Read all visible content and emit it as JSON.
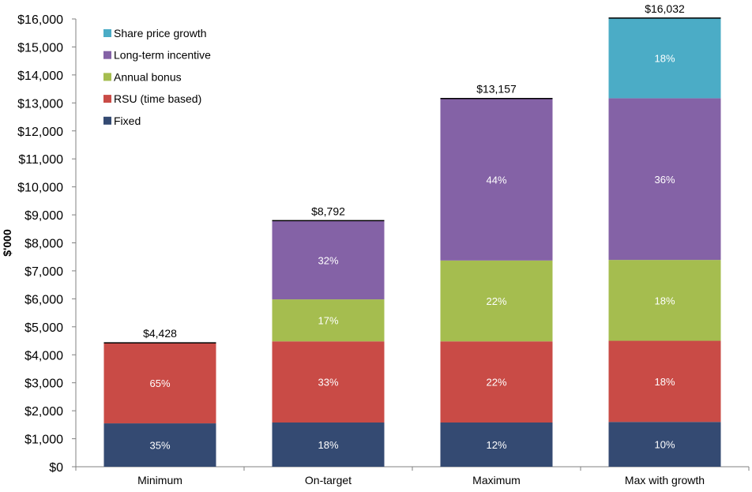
{
  "chart_data": {
    "type": "bar",
    "stacked": true,
    "ylabel": "$'000",
    "xlabel": "",
    "ylim": [
      0,
      16000
    ],
    "yticks": [
      0,
      1000,
      2000,
      3000,
      4000,
      5000,
      6000,
      7000,
      8000,
      9000,
      10000,
      11000,
      12000,
      13000,
      14000,
      15000,
      16000
    ],
    "ytick_labels": [
      "$0",
      "$1,000",
      "$2,000",
      "$3,000",
      "$4,000",
      "$5,000",
      "$6,000",
      "$7,000",
      "$8,000",
      "$9,000",
      "$10,000",
      "$11,000",
      "$12,000",
      "$13,000",
      "$14,000",
      "$15,000",
      "$16,000"
    ],
    "grid": false,
    "legend_position": "top-left",
    "categories": [
      "Minimum",
      "On-target",
      "Maximum",
      "Max with growth"
    ],
    "totals": [
      4428,
      8792,
      13157,
      16032
    ],
    "total_labels": [
      "$4,428",
      "$8,792",
      "$13,157",
      "$16,032"
    ],
    "series": [
      {
        "name": "Fixed",
        "color": "#344a72",
        "values": [
          1550,
          1580,
          1580,
          1600
        ],
        "labels": [
          "35%",
          "18%",
          "12%",
          "10%"
        ]
      },
      {
        "name": "RSU (time based)",
        "color": "#c94b46",
        "values": [
          2878,
          2900,
          2900,
          2900
        ],
        "labels": [
          "65%",
          "33%",
          "22%",
          "18%"
        ]
      },
      {
        "name": "Annual bonus",
        "color": "#a5bd4f",
        "values": [
          0,
          1500,
          2890,
          2890
        ],
        "labels": [
          "",
          "17%",
          "22%",
          "18%"
        ]
      },
      {
        "name": "Long-term incentive",
        "color": "#8462a6",
        "values": [
          0,
          2812,
          5787,
          5777
        ],
        "labels": [
          "",
          "32%",
          "44%",
          "36%"
        ]
      },
      {
        "name": "Share price growth",
        "color": "#4bacc6",
        "values": [
          0,
          0,
          0,
          2865
        ],
        "labels": [
          "",
          "",
          "",
          "18%"
        ]
      }
    ],
    "legend_order": [
      "Share price growth",
      "Long-term incentive",
      "Annual bonus",
      "RSU (time based)",
      "Fixed"
    ]
  }
}
